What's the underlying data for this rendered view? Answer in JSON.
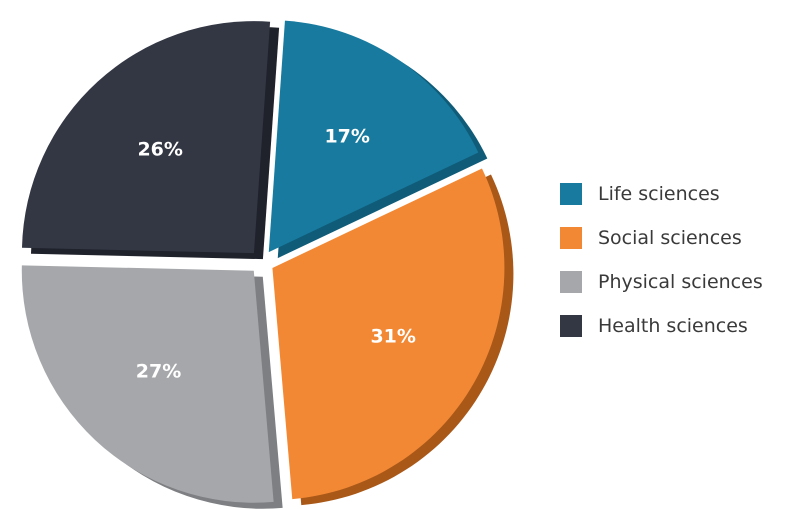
{
  "chart_data": {
    "type": "pie",
    "title": "",
    "style": "exploded-3d",
    "slices": [
      {
        "label": "Life sciences",
        "value": 17,
        "display": "17%",
        "color": "#177a9e",
        "side_color": "#0f5b78"
      },
      {
        "label": "Social sciences",
        "value": 31,
        "display": "31%",
        "color": "#f28834",
        "side_color": "#a95818"
      },
      {
        "label": "Physical sciences",
        "value": 27,
        "display": "27%",
        "color": "#a5a7aa",
        "side_color": "#7d7f82"
      },
      {
        "label": "Health sciences",
        "value": 26,
        "display": "26%",
        "color": "#333744",
        "side_color": "#1f222b"
      }
    ],
    "legend_position": "right"
  }
}
